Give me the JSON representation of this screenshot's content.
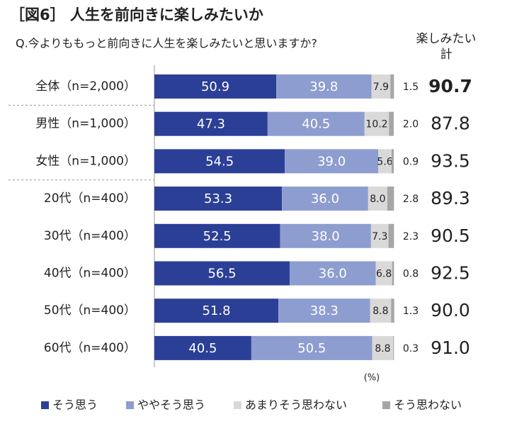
{
  "chart_data": {
    "type": "stacked-barh",
    "title": "［図6］ 人生を前向きに楽しみたいか",
    "subtitle": "Q.今よりももっと前向きに人生を楽しみたいと思いますか?",
    "unit": "(%)",
    "categories": [
      "全体（n=2,000）",
      "男性（n=1,000）",
      "女性（n=1,000）",
      "20代（n=400）",
      "30代（n=400）",
      "40代（n=400）",
      "50代（n=400）",
      "60代（n=400）"
    ],
    "xlim": [
      0,
      100
    ],
    "series": [
      {
        "name": "そう思う",
        "color": "#2b3f96",
        "values": [
          50.9,
          47.3,
          54.5,
          53.3,
          52.5,
          56.5,
          51.8,
          40.5
        ],
        "value_labels": [
          "50.9",
          "47.3",
          "54.5",
          "53.3",
          "52.5",
          "56.5",
          "51.8",
          "40.5"
        ]
      },
      {
        "name": "ややそう思う",
        "color": "#8e9dcf",
        "values": [
          39.8,
          40.5,
          39.0,
          36.0,
          38.0,
          36.0,
          38.3,
          50.5
        ],
        "value_labels": [
          "39.8",
          "40.5",
          "39.0",
          "36.0",
          "38.0",
          "36.0",
          "38.3",
          "50.5"
        ]
      },
      {
        "name": "あまりそう思わない",
        "color": "#d9d9d9",
        "values": [
          7.9,
          10.2,
          5.6,
          8.0,
          7.3,
          6.8,
          8.8,
          8.8
        ],
        "value_labels": [
          "7.9",
          "10.2",
          "5.6",
          "8.0",
          "7.3",
          "6.8",
          "8.8",
          "8.8"
        ]
      },
      {
        "name": "そう思わない",
        "color": "#a6a6a6",
        "values": [
          1.5,
          2.0,
          0.9,
          2.8,
          2.3,
          0.8,
          1.3,
          0.3
        ],
        "value_labels": [
          "1.5",
          "2.0",
          "0.9",
          "2.8",
          "2.3",
          "0.8",
          "1.3",
          "0.3"
        ]
      }
    ],
    "totals": {
      "title": "楽しみたい計",
      "values": [
        90.7,
        87.8,
        93.5,
        89.3,
        90.5,
        92.5,
        90.0,
        91.0
      ],
      "value_labels": [
        "90.7",
        "87.8",
        "93.5",
        "89.3",
        "90.5",
        "92.5",
        "90.0",
        "91.0"
      ]
    }
  }
}
